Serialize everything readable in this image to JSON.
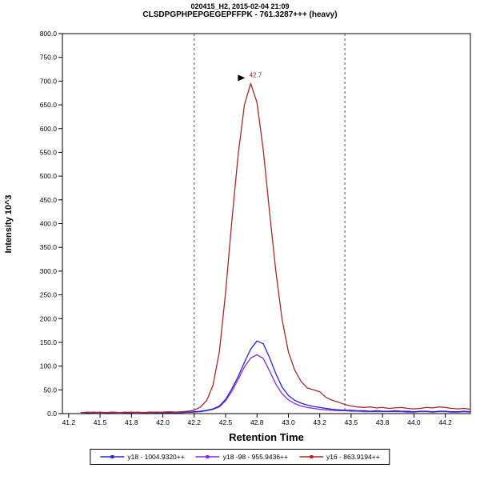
{
  "header": {
    "title_line1": "020415_H2, 2015-02-04 21:09",
    "title_line2": "CLSDPGPHPEPGEGEPFFPK - 761.3287+++ (heavy)"
  },
  "chart_data": {
    "type": "line",
    "title": "CLSDPGPHPEPGEGEPFFPK - 761.3287+++ (heavy)",
    "xlabel": "Retention Time",
    "ylabel": "Intensity 10^3",
    "xlim": [
      41.2,
      44.45
    ],
    "ylim": [
      0,
      800
    ],
    "x_ticks": {
      "values": [
        41.25,
        41.5,
        41.75,
        42.0,
        42.25,
        42.5,
        42.75,
        43.0,
        43.25,
        43.5,
        43.75,
        44.0,
        44.25
      ],
      "labels": [
        "41.2",
        "41.5",
        "41.8",
        "42.0",
        "42.2",
        "42.5",
        "42.8",
        "43.0",
        "43.2",
        "43.5",
        "43.8",
        "44.0",
        "44.2"
      ]
    },
    "y_ticks": {
      "step": 50,
      "labels": [
        "0.0",
        "50.0",
        "100.0",
        "150.0",
        "200.0",
        "250.0",
        "300.0",
        "350.0",
        "400.0",
        "450.0",
        "500.0",
        "550.0",
        "600.0",
        "650.0",
        "700.0",
        "750.0",
        "800.0"
      ]
    },
    "peak_boundaries": [
      42.25,
      43.45
    ],
    "peak_annotation": {
      "x": 42.7,
      "y": 695,
      "label": "42.7",
      "color": "#8b2222"
    },
    "x": [
      41.35,
      41.4,
      41.45,
      41.5,
      41.55,
      41.6,
      41.65,
      41.7,
      41.75,
      41.8,
      41.85,
      41.9,
      41.95,
      42.0,
      42.05,
      42.1,
      42.15,
      42.2,
      42.25,
      42.3,
      42.35,
      42.4,
      42.45,
      42.5,
      42.55,
      42.6,
      42.65,
      42.7,
      42.75,
      42.8,
      42.85,
      42.9,
      42.95,
      43.0,
      43.05,
      43.1,
      43.15,
      43.2,
      43.25,
      43.3,
      43.35,
      43.4,
      43.45,
      43.5,
      43.55,
      43.6,
      43.65,
      43.7,
      43.75,
      43.8,
      43.85,
      43.9,
      43.95,
      44.0,
      44.05,
      44.1,
      44.15,
      44.2,
      44.25,
      44.3,
      44.35,
      44.4,
      44.45
    ],
    "series": [
      {
        "name": "y18 - 1004.9320++",
        "color": "#2828cc",
        "values": [
          2,
          2,
          3,
          2,
          2,
          3,
          2,
          2,
          3,
          2,
          2,
          3,
          2,
          3,
          2,
          3,
          3,
          3,
          4,
          5,
          7,
          10,
          16,
          30,
          52,
          78,
          108,
          136,
          153,
          147,
          118,
          84,
          56,
          38,
          28,
          22,
          18,
          15,
          13,
          11,
          9,
          8,
          7,
          7,
          6,
          6,
          5,
          6,
          5,
          5,
          6,
          5,
          5,
          4,
          5,
          5,
          4,
          5,
          5,
          4,
          4,
          5,
          4
        ]
      },
      {
        "name": "y18 -98 - 955.9436++",
        "color": "#8a2be2",
        "values": [
          1,
          2,
          2,
          1,
          2,
          2,
          1,
          2,
          2,
          1,
          2,
          2,
          2,
          2,
          2,
          2,
          2,
          3,
          3,
          4,
          6,
          9,
          14,
          27,
          47,
          72,
          98,
          117,
          124,
          116,
          90,
          62,
          42,
          29,
          21,
          16,
          13,
          11,
          9,
          8,
          7,
          6,
          6,
          5,
          5,
          4,
          4,
          4,
          4,
          4,
          4,
          4,
          3,
          3,
          4,
          4,
          3,
          4,
          4,
          3,
          3,
          4,
          3
        ]
      },
      {
        "name": "y16 - 863.9194++",
        "color": "#a52a2a",
        "values": [
          2,
          3,
          2,
          3,
          2,
          3,
          2,
          3,
          2,
          3,
          2,
          3,
          3,
          3,
          4,
          3,
          4,
          5,
          7,
          14,
          28,
          60,
          130,
          255,
          405,
          545,
          650,
          695,
          655,
          555,
          425,
          300,
          198,
          130,
          92,
          68,
          54,
          50,
          46,
          34,
          28,
          24,
          19,
          16,
          14,
          13,
          14,
          12,
          13,
          11,
          12,
          13,
          11,
          10,
          11,
          13,
          12,
          14,
          13,
          11,
          10,
          11,
          9
        ]
      }
    ],
    "draw_order": [
      1,
      0,
      2
    ],
    "legend_position": "bottom"
  }
}
